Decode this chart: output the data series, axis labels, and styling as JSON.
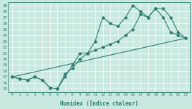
{
  "xlabel": "Humidex (Indice chaleur)",
  "xlim": [
    -0.5,
    23.5
  ],
  "ylim": [
    14.5,
    29.5
  ],
  "xticks": [
    0,
    1,
    2,
    3,
    4,
    5,
    6,
    7,
    8,
    9,
    10,
    11,
    12,
    13,
    14,
    15,
    16,
    17,
    18,
    19,
    20,
    21,
    22,
    23
  ],
  "yticks": [
    15,
    16,
    17,
    18,
    19,
    20,
    21,
    22,
    23,
    24,
    25,
    26,
    27,
    28,
    29
  ],
  "line_color": "#2e7d6e",
  "bg_color": "#c8e8e0",
  "grid_color": "#b0d4cc",
  "line1_x": [
    0,
    1,
    2,
    3,
    4,
    5,
    6,
    7,
    8,
    9,
    10,
    11,
    12,
    13,
    14,
    15,
    16,
    17,
    18,
    19,
    20,
    21,
    22,
    23
  ],
  "line1_y": [
    17.0,
    16.7,
    16.5,
    17.0,
    16.5,
    15.2,
    15.0,
    17.0,
    19.0,
    21.0,
    21.0,
    23.0,
    27.0,
    26.0,
    25.5,
    27.0,
    29.0,
    28.0,
    27.0,
    28.5,
    27.0,
    24.5,
    24.0,
    23.5
  ],
  "line2_x": [
    0,
    1,
    2,
    3,
    4,
    5,
    6,
    7,
    8,
    9,
    10,
    11,
    12,
    13,
    14,
    15,
    16,
    17,
    18,
    19,
    20,
    21,
    22,
    23
  ],
  "line2_y": [
    17.0,
    16.7,
    16.5,
    17.0,
    16.5,
    15.2,
    15.0,
    17.5,
    18.5,
    20.0,
    21.0,
    21.5,
    22.0,
    22.5,
    23.0,
    24.0,
    25.0,
    27.5,
    27.0,
    28.5,
    28.5,
    27.0,
    24.5,
    23.5
  ],
  "line3_x": [
    0,
    23
  ],
  "line3_y": [
    17.0,
    23.5
  ],
  "marker": "D",
  "markersize": 2.5
}
